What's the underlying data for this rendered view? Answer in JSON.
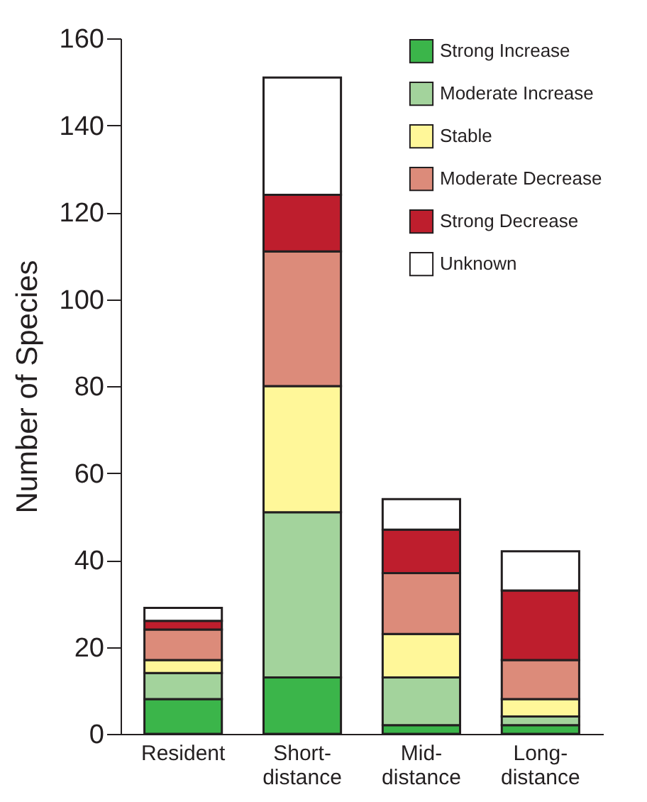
{
  "chart_data": {
    "type": "bar",
    "stacked": true,
    "ylabel": "Number of Species",
    "categories": [
      "Resident",
      "Short-distance",
      "Mid-distance",
      "Long-distance"
    ],
    "ylim": [
      0,
      160
    ],
    "yticks": [
      0,
      20,
      40,
      60,
      80,
      100,
      120,
      140,
      160
    ],
    "grid": false,
    "legend": "top right",
    "series": [
      {
        "name": "Strong Increase",
        "color": "#3bb54a",
        "values": [
          8,
          13,
          2,
          2
        ]
      },
      {
        "name": "Moderate Increase",
        "color": "#a3d39c",
        "values": [
          6,
          38,
          11,
          2
        ]
      },
      {
        "name": "Stable",
        "color": "#fff799",
        "values": [
          3,
          29,
          10,
          4
        ]
      },
      {
        "name": "Moderate Decrease",
        "color": "#dc8b7a",
        "values": [
          7,
          31,
          14,
          9
        ]
      },
      {
        "name": "Strong Decrease",
        "color": "#be1e2d",
        "values": [
          2,
          13,
          10,
          16
        ]
      },
      {
        "name": "Unknown",
        "color": "#ffffff",
        "values": [
          3,
          27,
          7,
          9
        ]
      }
    ]
  }
}
